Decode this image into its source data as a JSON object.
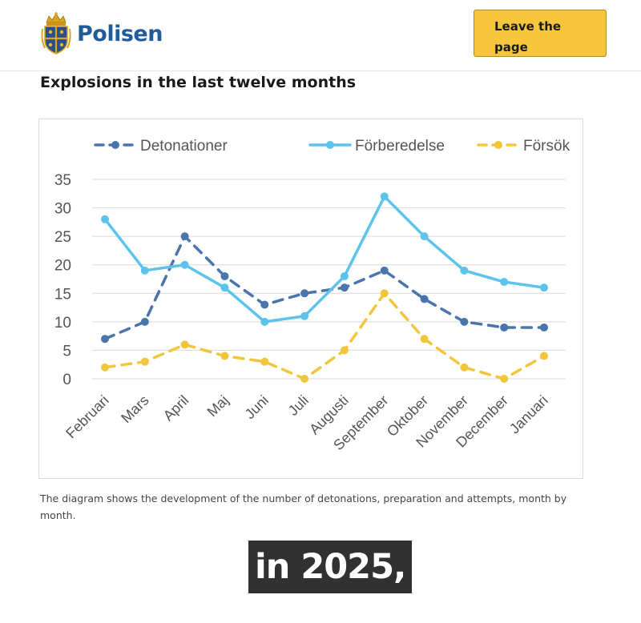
{
  "header": {
    "brand": "Polisen",
    "leave_button": {
      "line1": "Leave the",
      "line2": "page"
    }
  },
  "page": {
    "title": "Explosions in the last twelve months",
    "caption": "The diagram shows the development of the number of detonations, preparation and attempts, month by month."
  },
  "overlay": {
    "subtitle": "in 2025,"
  },
  "colors": {
    "brand_blue": "#1f5c99",
    "button_yellow": "#f8c63c",
    "series_detonationer": "#4a74ac",
    "series_forberedelse": "#5cc4ec",
    "series_forsok": "#f2c63a"
  },
  "chart_data": {
    "type": "line",
    "title": "",
    "xlabel": "",
    "ylabel": "",
    "categories": [
      "Februari",
      "Mars",
      "April",
      "Maj",
      "Juni",
      "Juli",
      "Augusti",
      "September",
      "Oktober",
      "November",
      "December",
      "Januari"
    ],
    "ylim": [
      0,
      35
    ],
    "yticks": [
      0,
      5,
      10,
      15,
      20,
      25,
      30,
      35
    ],
    "grid": true,
    "legend_position": "top",
    "series": [
      {
        "name": "Detonationer",
        "style": "dashed",
        "color": "#4a74ac",
        "values": [
          7,
          10,
          25,
          18,
          13,
          15,
          16,
          19,
          14,
          10,
          9,
          9
        ]
      },
      {
        "name": "Förberedelse",
        "style": "solid",
        "color": "#5cc4ec",
        "values": [
          28,
          19,
          20,
          16,
          10,
          11,
          18,
          32,
          25,
          19,
          17,
          16
        ]
      },
      {
        "name": "Försök",
        "style": "dashed",
        "color": "#f2c63a",
        "values": [
          2,
          3,
          6,
          4,
          3,
          0,
          5,
          15,
          7,
          2,
          0,
          4
        ]
      }
    ]
  }
}
